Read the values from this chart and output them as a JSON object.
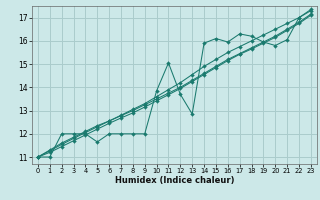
{
  "xlabel": "Humidex (Indice chaleur)",
  "bg_color": "#cce8e8",
  "line_color": "#1a7a6e",
  "grid_color": "#aacccc",
  "xlim": [
    -0.5,
    23.5
  ],
  "ylim": [
    10.7,
    17.5
  ],
  "xticks": [
    0,
    1,
    2,
    3,
    4,
    5,
    6,
    7,
    8,
    9,
    10,
    11,
    12,
    13,
    14,
    15,
    16,
    17,
    18,
    19,
    20,
    21,
    22,
    23
  ],
  "yticks": [
    11,
    12,
    13,
    14,
    15,
    16,
    17
  ],
  "series": [
    {
      "x": [
        0,
        1,
        2,
        3,
        4,
        5,
        6,
        7,
        8,
        9,
        10,
        11,
        12,
        13,
        14,
        15,
        16,
        17,
        18,
        19,
        20,
        21,
        22,
        23
      ],
      "y": [
        11.0,
        11.0,
        12.0,
        12.0,
        12.0,
        11.65,
        12.0,
        12.0,
        12.0,
        12.0,
        13.85,
        15.05,
        13.7,
        12.85,
        15.9,
        16.1,
        15.95,
        16.3,
        16.2,
        15.95,
        15.8,
        16.05,
        17.0,
        17.35
      ]
    },
    {
      "x": [
        0,
        1,
        2,
        3,
        4,
        5,
        6,
        7,
        8,
        9,
        10,
        11,
        12,
        13,
        14,
        15,
        16,
        17,
        18,
        19,
        20,
        21,
        22,
        23
      ],
      "y": [
        11.0,
        11.27,
        11.54,
        11.8,
        12.05,
        12.3,
        12.55,
        12.78,
        13.0,
        13.25,
        13.5,
        13.75,
        14.0,
        14.3,
        14.6,
        14.9,
        15.2,
        15.45,
        15.7,
        15.95,
        16.2,
        16.5,
        16.8,
        17.15
      ]
    },
    {
      "x": [
        0,
        1,
        2,
        3,
        4,
        5,
        6,
        7,
        8,
        9,
        10,
        11,
        12,
        13,
        14,
        15,
        16,
        17,
        18,
        19,
        20,
        21,
        22,
        23
      ],
      "y": [
        11.0,
        11.3,
        11.6,
        11.85,
        12.1,
        12.35,
        12.55,
        12.8,
        13.05,
        13.3,
        13.6,
        13.9,
        14.2,
        14.55,
        14.9,
        15.2,
        15.5,
        15.75,
        16.0,
        16.25,
        16.5,
        16.75,
        17.0,
        17.3
      ]
    },
    {
      "x": [
        0,
        1,
        2,
        3,
        4,
        5,
        6,
        7,
        8,
        9,
        10,
        11,
        12,
        13,
        14,
        15,
        16,
        17,
        18,
        19,
        20,
        21,
        22,
        23
      ],
      "y": [
        11.0,
        11.2,
        11.45,
        11.7,
        11.95,
        12.2,
        12.45,
        12.68,
        12.9,
        13.15,
        13.42,
        13.68,
        13.95,
        14.25,
        14.55,
        14.85,
        15.15,
        15.42,
        15.65,
        15.9,
        16.15,
        16.45,
        16.75,
        17.1
      ]
    }
  ]
}
